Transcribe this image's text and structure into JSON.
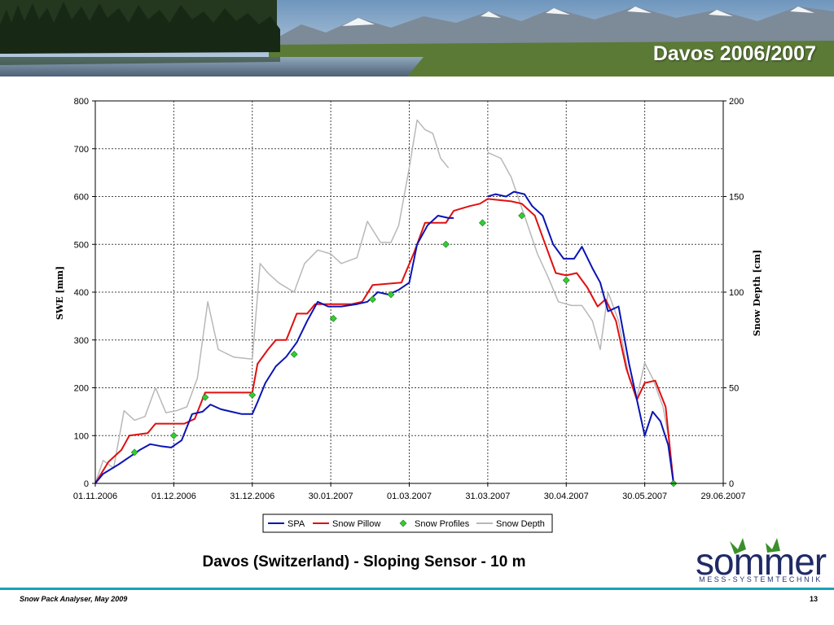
{
  "slide": {
    "title": "Davos 2006/2007",
    "caption": "Davos (Switzerland) - Sloping Sensor - 10 m",
    "footer_left": "Snow Pack Analyser, May 2009",
    "page_number": "13"
  },
  "logo": {
    "brand_text": "sommer",
    "tagline": "MESS-SYSTEMTECHNIK",
    "brand_color": "#1f2a66",
    "accent_color": "#3a8f2a"
  },
  "chart_data": {
    "type": "line",
    "title": "",
    "ylabel": "SWE [mm]",
    "y2label": "Snow Depth [cm]",
    "xlabel": "",
    "x_ticks": [
      "01.11.2006",
      "01.12.2006",
      "31.12.2006",
      "30.01.2007",
      "01.03.2007",
      "31.03.2007",
      "30.04.2007",
      "30.05.2007",
      "29.06.2007"
    ],
    "xlim": [
      "2006-11-01",
      "2007-06-29"
    ],
    "ylim": [
      0,
      800
    ],
    "y_ticks": [
      "0",
      "100",
      "200",
      "300",
      "400",
      "500",
      "600",
      "700",
      "800"
    ],
    "y2lim": [
      0,
      200
    ],
    "y2_ticks": [
      "0",
      "50",
      "100",
      "150",
      "200"
    ],
    "grid": true,
    "legend_position": "bottom",
    "series": [
      {
        "name": "SPA",
        "axis": "left",
        "color": "#0a14b4",
        "style": "line",
        "points": [
          [
            "2006-11-01",
            0
          ],
          [
            "2006-11-04",
            20
          ],
          [
            "2006-11-10",
            40
          ],
          [
            "2006-11-14",
            55
          ],
          [
            "2006-11-18",
            70
          ],
          [
            "2006-11-22",
            82
          ],
          [
            "2006-11-26",
            78
          ],
          [
            "2006-11-30",
            75
          ],
          [
            "2006-12-04",
            90
          ],
          [
            "2006-12-08",
            145
          ],
          [
            "2006-12-12",
            150
          ],
          [
            "2006-12-15",
            165
          ],
          [
            "2006-12-19",
            155
          ],
          [
            "2006-12-23",
            150
          ],
          [
            "2006-12-27",
            145
          ],
          [
            "2006-12-31",
            145
          ],
          [
            "2007-01-02",
            170
          ],
          [
            "2007-01-05",
            210
          ],
          [
            "2007-01-09",
            245
          ],
          [
            "2007-01-13",
            265
          ],
          [
            "2007-01-17",
            295
          ],
          [
            "2007-01-21",
            340
          ],
          [
            "2007-01-25",
            380
          ],
          [
            "2007-01-29",
            370
          ],
          [
            "2007-02-03",
            370
          ],
          [
            "2007-02-09",
            375
          ],
          [
            "2007-02-13",
            380
          ],
          [
            "2007-02-17",
            400
          ],
          [
            "2007-02-21",
            395
          ],
          [
            "2007-02-25",
            405
          ],
          [
            "2007-03-01",
            420
          ],
          [
            "2007-03-04",
            500
          ],
          [
            "2007-03-08",
            540
          ],
          [
            "2007-03-12",
            560
          ],
          [
            "2007-03-16",
            555
          ],
          [
            "2007-03-18",
            555
          ],
          [
            "2007-03-21",
            null
          ],
          [
            "2007-03-31",
            600
          ],
          [
            "2007-04-03",
            605
          ],
          [
            "2007-04-07",
            600
          ],
          [
            "2007-04-10",
            610
          ],
          [
            "2007-04-14",
            605
          ],
          [
            "2007-04-17",
            580
          ],
          [
            "2007-04-21",
            560
          ],
          [
            "2007-04-25",
            500
          ],
          [
            "2007-04-29",
            470
          ],
          [
            "2007-05-03",
            470
          ],
          [
            "2007-05-06",
            495
          ],
          [
            "2007-05-10",
            450
          ],
          [
            "2007-05-13",
            420
          ],
          [
            "2007-05-16",
            360
          ],
          [
            "2007-05-20",
            370
          ],
          [
            "2007-05-24",
            250
          ],
          [
            "2007-05-28",
            150
          ],
          [
            "2007-05-30",
            100
          ],
          [
            "2007-06-02",
            150
          ],
          [
            "2007-06-05",
            130
          ],
          [
            "2007-06-08",
            80
          ],
          [
            "2007-06-10",
            0
          ]
        ]
      },
      {
        "name": "Snow Pillow",
        "axis": "left",
        "color": "#e01010",
        "style": "line",
        "points": [
          [
            "2006-11-01",
            0
          ],
          [
            "2006-11-06",
            45
          ],
          [
            "2006-11-11",
            70
          ],
          [
            "2006-11-14",
            100
          ],
          [
            "2006-11-21",
            105
          ],
          [
            "2006-11-24",
            125
          ],
          [
            "2006-12-05",
            125
          ],
          [
            "2006-12-09",
            135
          ],
          [
            "2006-12-13",
            190
          ],
          [
            "2006-12-31",
            190
          ],
          [
            "2007-01-02",
            250
          ],
          [
            "2007-01-06",
            280
          ],
          [
            "2007-01-09",
            300
          ],
          [
            "2007-01-13",
            300
          ],
          [
            "2007-01-17",
            355
          ],
          [
            "2007-01-21",
            355
          ],
          [
            "2007-01-24",
            375
          ],
          [
            "2007-01-30",
            375
          ],
          [
            "2007-02-07",
            375
          ],
          [
            "2007-02-11",
            380
          ],
          [
            "2007-02-15",
            415
          ],
          [
            "2007-02-26",
            420
          ],
          [
            "2007-03-03",
            485
          ],
          [
            "2007-03-07",
            545
          ],
          [
            "2007-03-15",
            545
          ],
          [
            "2007-03-18",
            570
          ],
          [
            "2007-03-24",
            580
          ],
          [
            "2007-03-28",
            585
          ],
          [
            "2007-03-31",
            595
          ],
          [
            "2007-04-09",
            590
          ],
          [
            "2007-04-13",
            585
          ],
          [
            "2007-04-18",
            560
          ],
          [
            "2007-04-22",
            500
          ],
          [
            "2007-04-26",
            440
          ],
          [
            "2007-04-30",
            435
          ],
          [
            "2007-05-04",
            440
          ],
          [
            "2007-05-08",
            410
          ],
          [
            "2007-05-12",
            370
          ],
          [
            "2007-05-15",
            385
          ],
          [
            "2007-05-19",
            340
          ],
          [
            "2007-05-23",
            240
          ],
          [
            "2007-05-27",
            175
          ],
          [
            "2007-05-30",
            210
          ],
          [
            "2007-06-03",
            215
          ],
          [
            "2007-06-07",
            160
          ],
          [
            "2007-06-10",
            0
          ]
        ]
      },
      {
        "name": "Snow Profiles",
        "axis": "left",
        "color": "#33cc33",
        "style": "markers",
        "points": [
          [
            "2006-11-16",
            65
          ],
          [
            "2006-12-01",
            100
          ],
          [
            "2006-12-13",
            180
          ],
          [
            "2006-12-31",
            185
          ],
          [
            "2007-01-16",
            270
          ],
          [
            "2007-01-31",
            345
          ],
          [
            "2007-02-15",
            385
          ],
          [
            "2007-02-22",
            395
          ],
          [
            "2007-03-15",
            500
          ],
          [
            "2007-03-29",
            545
          ],
          [
            "2007-04-13",
            560
          ],
          [
            "2007-04-30",
            425
          ],
          [
            "2007-06-10",
            0
          ]
        ]
      },
      {
        "name": "Snow Depth",
        "axis": "right",
        "color": "#b8b8b8",
        "style": "line",
        "points": [
          [
            "2006-11-01",
            0
          ],
          [
            "2006-11-04",
            12
          ],
          [
            "2006-11-08",
            8
          ],
          [
            "2006-11-12",
            38
          ],
          [
            "2006-11-16",
            33
          ],
          [
            "2006-11-20",
            35
          ],
          [
            "2006-11-24",
            50
          ],
          [
            "2006-11-28",
            37
          ],
          [
            "2006-12-02",
            38
          ],
          [
            "2006-12-06",
            40
          ],
          [
            "2006-12-10",
            55
          ],
          [
            "2006-12-14",
            95
          ],
          [
            "2006-12-18",
            70
          ],
          [
            "2006-12-24",
            66
          ],
          [
            "2006-12-31",
            65
          ],
          [
            "2007-01-03",
            115
          ],
          [
            "2007-01-06",
            110
          ],
          [
            "2007-01-10",
            105
          ],
          [
            "2007-01-16",
            100
          ],
          [
            "2007-01-20",
            115
          ],
          [
            "2007-01-25",
            122
          ],
          [
            "2007-01-30",
            120
          ],
          [
            "2007-02-03",
            115
          ],
          [
            "2007-02-09",
            118
          ],
          [
            "2007-02-13",
            137
          ],
          [
            "2007-02-18",
            126
          ],
          [
            "2007-02-22",
            126
          ],
          [
            "2007-02-25",
            135
          ],
          [
            "2007-03-01",
            165
          ],
          [
            "2007-03-04",
            190
          ],
          [
            "2007-03-07",
            185
          ],
          [
            "2007-03-10",
            183
          ],
          [
            "2007-03-13",
            170
          ],
          [
            "2007-03-16",
            165
          ],
          [
            "2007-03-18",
            null
          ],
          [
            "2007-03-31",
            173
          ],
          [
            "2007-04-05",
            170
          ],
          [
            "2007-04-09",
            160
          ],
          [
            "2007-04-14",
            140
          ],
          [
            "2007-04-19",
            120
          ],
          [
            "2007-04-23",
            108
          ],
          [
            "2007-04-27",
            95
          ],
          [
            "2007-05-02",
            93
          ],
          [
            "2007-05-06",
            93
          ],
          [
            "2007-05-10",
            85
          ],
          [
            "2007-05-13",
            70
          ],
          [
            "2007-05-16",
            100
          ],
          [
            "2007-05-20",
            85
          ],
          [
            "2007-05-24",
            55
          ],
          [
            "2007-05-27",
            45
          ],
          [
            "2007-05-30",
            63
          ],
          [
            "2007-06-02",
            55
          ],
          [
            "2007-06-06",
            40
          ],
          [
            "2007-06-08",
            25
          ],
          [
            "2007-06-10",
            0
          ]
        ]
      }
    ]
  }
}
